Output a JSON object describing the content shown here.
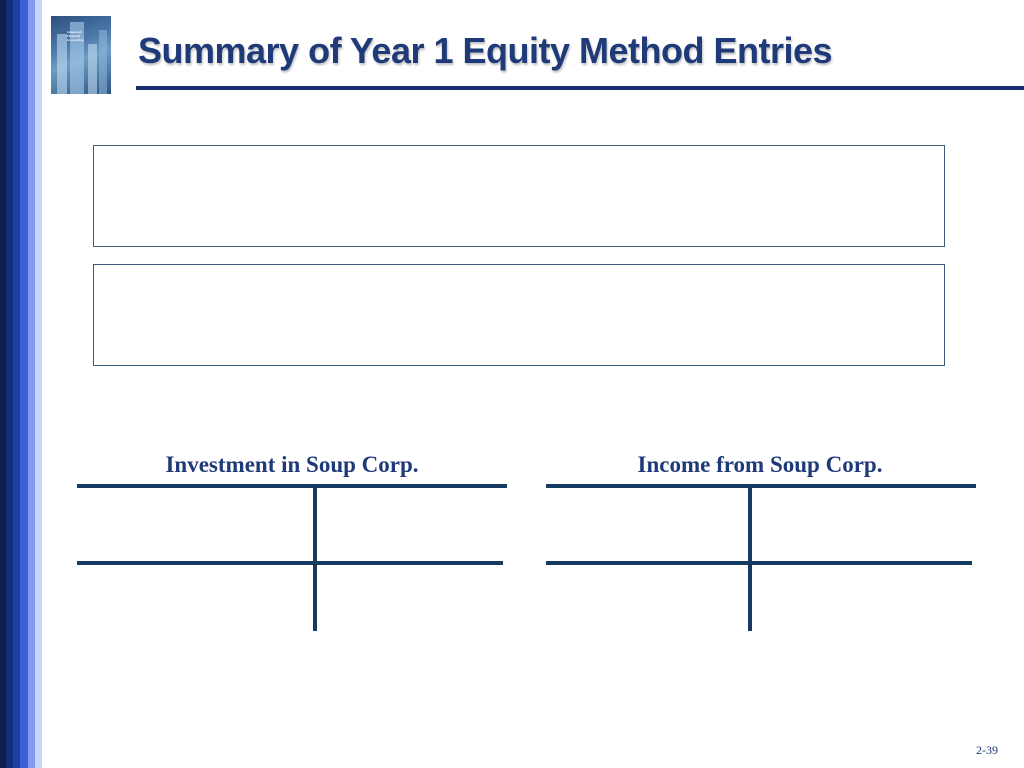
{
  "slide": {
    "title": "Summary of Year 1 Equity Method Entries",
    "page_number": "2-39"
  },
  "cover": {
    "icon": "textbook-cover",
    "lines": [
      "Advanced",
      "Financial",
      "Accounting"
    ]
  },
  "entry_boxes": [
    {
      "content": ""
    },
    {
      "content": ""
    }
  ],
  "t_accounts": [
    {
      "title": "Investment in Soup Corp."
    },
    {
      "title": "Income from Soup Corp."
    }
  ],
  "colors": {
    "title": "#1f3a78",
    "rule": "#1b2e6b",
    "t_lines": "#173a63"
  }
}
